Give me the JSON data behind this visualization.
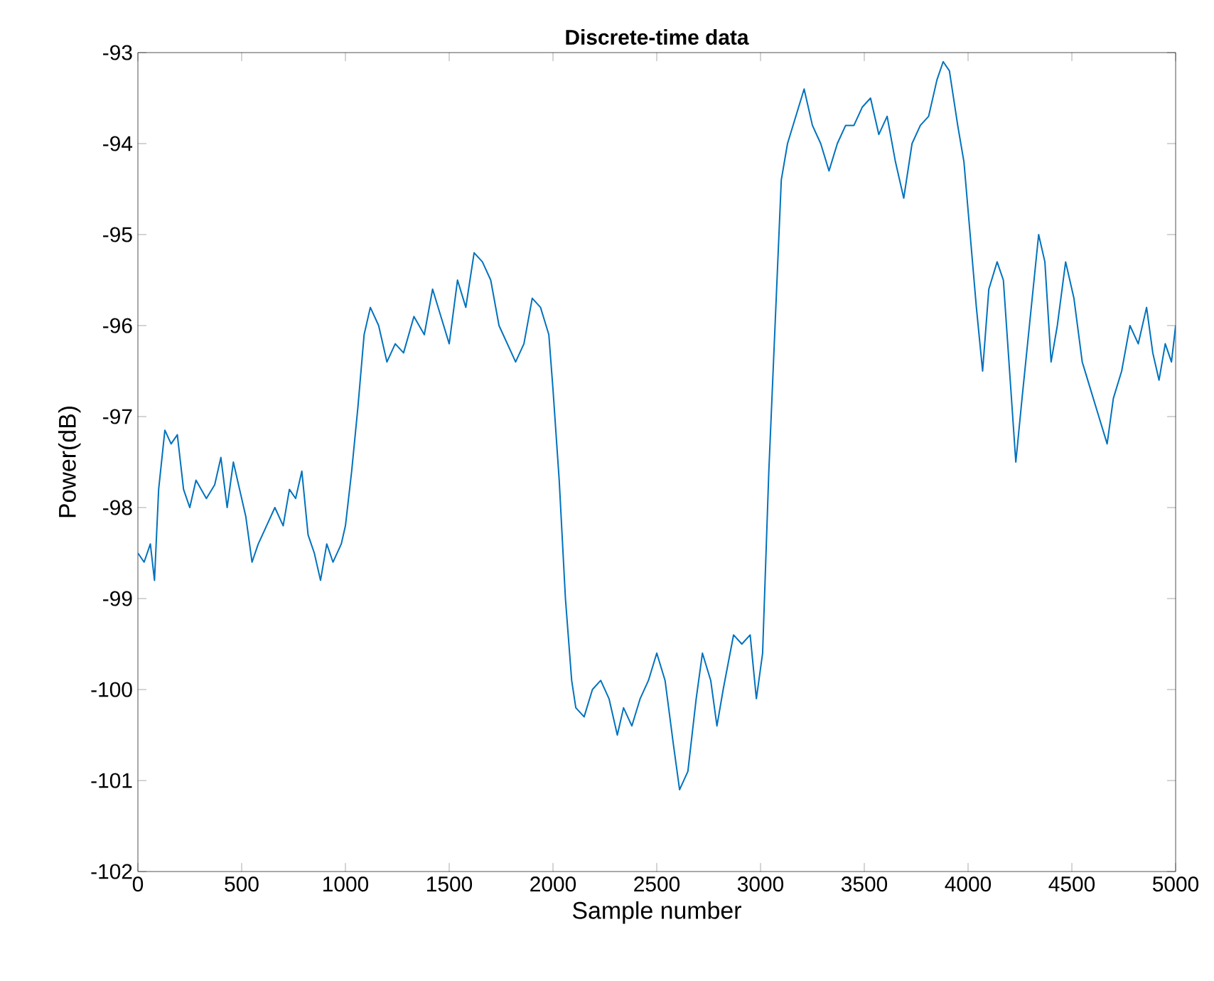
{
  "chart_data": {
    "type": "line",
    "title": "Discrete-time data",
    "xlabel": "Sample number",
    "ylabel": "Power(dB)",
    "xlim": [
      0,
      5000
    ],
    "ylim": [
      -102,
      -93
    ],
    "xticks": [
      0,
      500,
      1000,
      1500,
      2000,
      2500,
      3000,
      3500,
      4000,
      4500,
      5000
    ],
    "yticks": [
      -102,
      -101,
      -100,
      -99,
      -98,
      -97,
      -96,
      -95,
      -94,
      -93
    ],
    "grid": false,
    "marker": "none",
    "line_style": "solid",
    "series": [
      {
        "color": "#0072bd",
        "x": [
          0,
          30,
          60,
          80,
          100,
          130,
          160,
          190,
          220,
          250,
          280,
          330,
          370,
          400,
          430,
          460,
          490,
          520,
          550,
          580,
          620,
          660,
          700,
          730,
          760,
          790,
          820,
          850,
          880,
          910,
          940,
          980,
          1000,
          1030,
          1060,
          1090,
          1120,
          1160,
          1200,
          1240,
          1280,
          1330,
          1380,
          1420,
          1460,
          1500,
          1540,
          1580,
          1620,
          1660,
          1700,
          1740,
          1780,
          1820,
          1860,
          1900,
          1940,
          1980,
          2000,
          2030,
          2060,
          2090,
          2110,
          2150,
          2190,
          2230,
          2270,
          2310,
          2340,
          2380,
          2420,
          2460,
          2500,
          2540,
          2580,
          2610,
          2650,
          2690,
          2720,
          2760,
          2790,
          2820,
          2870,
          2910,
          2950,
          2980,
          3010,
          3040,
          3070,
          3100,
          3130,
          3170,
          3210,
          3250,
          3290,
          3330,
          3370,
          3410,
          3450,
          3490,
          3530,
          3570,
          3610,
          3650,
          3690,
          3730,
          3770,
          3810,
          3850,
          3880,
          3910,
          3950,
          3980,
          4010,
          4040,
          4070,
          4100,
          4140,
          4170,
          4200,
          4230,
          4260,
          4300,
          4340,
          4370,
          4400,
          4430,
          4470,
          4510,
          4550,
          4590,
          4630,
          4670,
          4700,
          4740,
          4780,
          4820,
          4860,
          4890,
          4920,
          4950,
          4980,
          5000
        ],
        "values": [
          -98.5,
          -98.6,
          -98.4,
          -98.8,
          -97.8,
          -97.15,
          -97.3,
          -97.2,
          -97.8,
          -98.0,
          -97.7,
          -97.9,
          -97.75,
          -97.45,
          -98.0,
          -97.5,
          -97.8,
          -98.1,
          -98.6,
          -98.4,
          -98.2,
          -98.0,
          -98.2,
          -97.8,
          -97.9,
          -97.6,
          -98.3,
          -98.5,
          -98.8,
          -98.4,
          -98.6,
          -98.4,
          -98.2,
          -97.6,
          -96.9,
          -96.1,
          -95.8,
          -96.0,
          -96.4,
          -96.2,
          -96.3,
          -95.9,
          -96.1,
          -95.6,
          -95.9,
          -96.2,
          -95.5,
          -95.8,
          -95.2,
          -95.3,
          -95.5,
          -96.0,
          -96.2,
          -96.4,
          -96.2,
          -95.7,
          -95.8,
          -96.1,
          -96.7,
          -97.7,
          -99.0,
          -99.9,
          -100.2,
          -100.3,
          -100.0,
          -99.9,
          -100.1,
          -100.5,
          -100.2,
          -100.4,
          -100.1,
          -99.9,
          -99.6,
          -99.9,
          -100.6,
          -101.1,
          -100.9,
          -100.1,
          -99.6,
          -99.9,
          -100.4,
          -100.0,
          -99.4,
          -99.5,
          -99.4,
          -100.1,
          -99.6,
          -97.6,
          -96.0,
          -94.4,
          -94.0,
          -93.7,
          -93.4,
          -93.8,
          -94.0,
          -94.3,
          -94.0,
          -93.8,
          -93.8,
          -93.6,
          -93.5,
          -93.9,
          -93.7,
          -94.2,
          -94.6,
          -94.0,
          -93.8,
          -93.7,
          -93.3,
          -93.1,
          -93.2,
          -93.8,
          -94.2,
          -95.0,
          -95.8,
          -96.5,
          -95.6,
          -95.3,
          -95.5,
          -96.5,
          -97.5,
          -96.8,
          -95.9,
          -95.0,
          -95.3,
          -96.4,
          -96.0,
          -95.3,
          -95.7,
          -96.4,
          -96.7,
          -97.0,
          -97.3,
          -96.8,
          -96.5,
          -96.0,
          -96.2,
          -95.8,
          -96.3,
          -96.6,
          -96.2,
          -96.4,
          -96.0
        ]
      }
    ]
  }
}
